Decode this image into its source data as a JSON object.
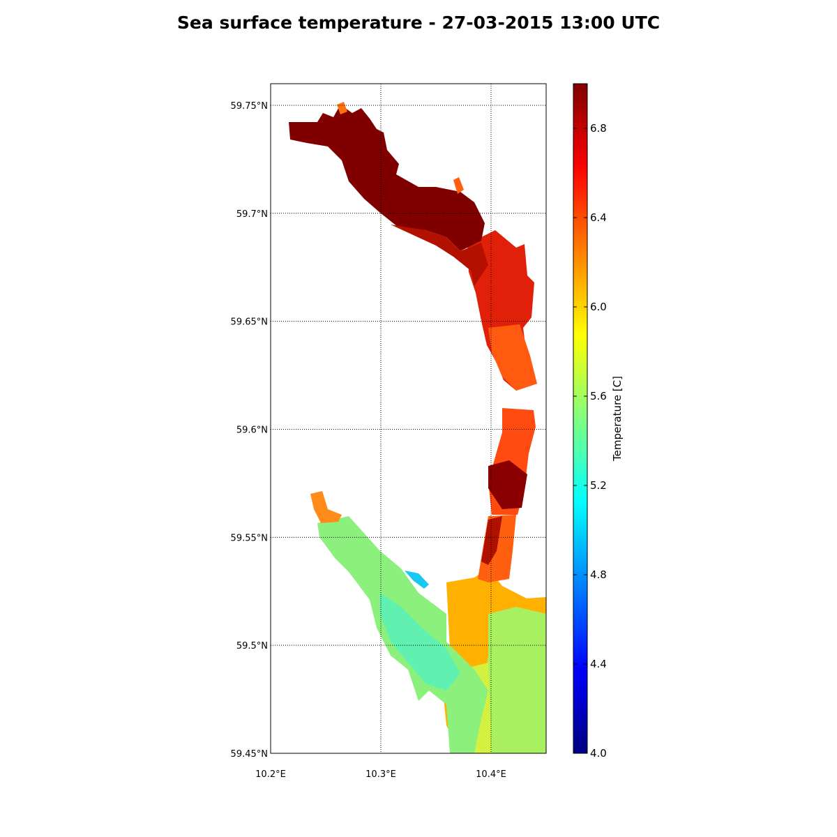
{
  "title": "Sea surface temperature - 27-03-2015 13:00 UTC",
  "map": {
    "lon_range": [
      10.2,
      10.45
    ],
    "lat_range": [
      59.45,
      59.76
    ],
    "lat_ticks": [
      {
        "value": 59.75,
        "label": "59.75°N"
      },
      {
        "value": 59.7,
        "label": "59.7°N"
      },
      {
        "value": 59.65,
        "label": "59.65°N"
      },
      {
        "value": 59.6,
        "label": "59.6°N"
      },
      {
        "value": 59.55,
        "label": "59.55°N"
      },
      {
        "value": 59.5,
        "label": "59.5°N"
      },
      {
        "value": 59.45,
        "label": "59.45°N"
      }
    ],
    "lon_ticks": [
      {
        "value": 10.2,
        "label": "10.2°E"
      },
      {
        "value": 10.3,
        "label": "10.3°E"
      },
      {
        "value": 10.4,
        "label": "10.4°E"
      }
    ],
    "gridlines": "dotted",
    "field_variable": "sea surface temperature",
    "colormap": "jet"
  },
  "colorbar": {
    "label": "Temperature [C]",
    "range": [
      4.0,
      7.0
    ],
    "ticks": [
      {
        "value": 4.0,
        "label": "4.0"
      },
      {
        "value": 4.4,
        "label": "4.4"
      },
      {
        "value": 4.8,
        "label": "4.8"
      },
      {
        "value": 5.2,
        "label": "5.2"
      },
      {
        "value": 5.6,
        "label": "5.6"
      },
      {
        "value": 6.0,
        "label": "6.0"
      },
      {
        "value": 6.4,
        "label": "6.4"
      },
      {
        "value": 6.8,
        "label": "6.8"
      }
    ],
    "colors": [
      "#00007f",
      "#0000ff",
      "#007fff",
      "#00ffff",
      "#7fff7f",
      "#ffff00",
      "#ff7f00",
      "#ff0000",
      "#7f0000"
    ]
  }
}
